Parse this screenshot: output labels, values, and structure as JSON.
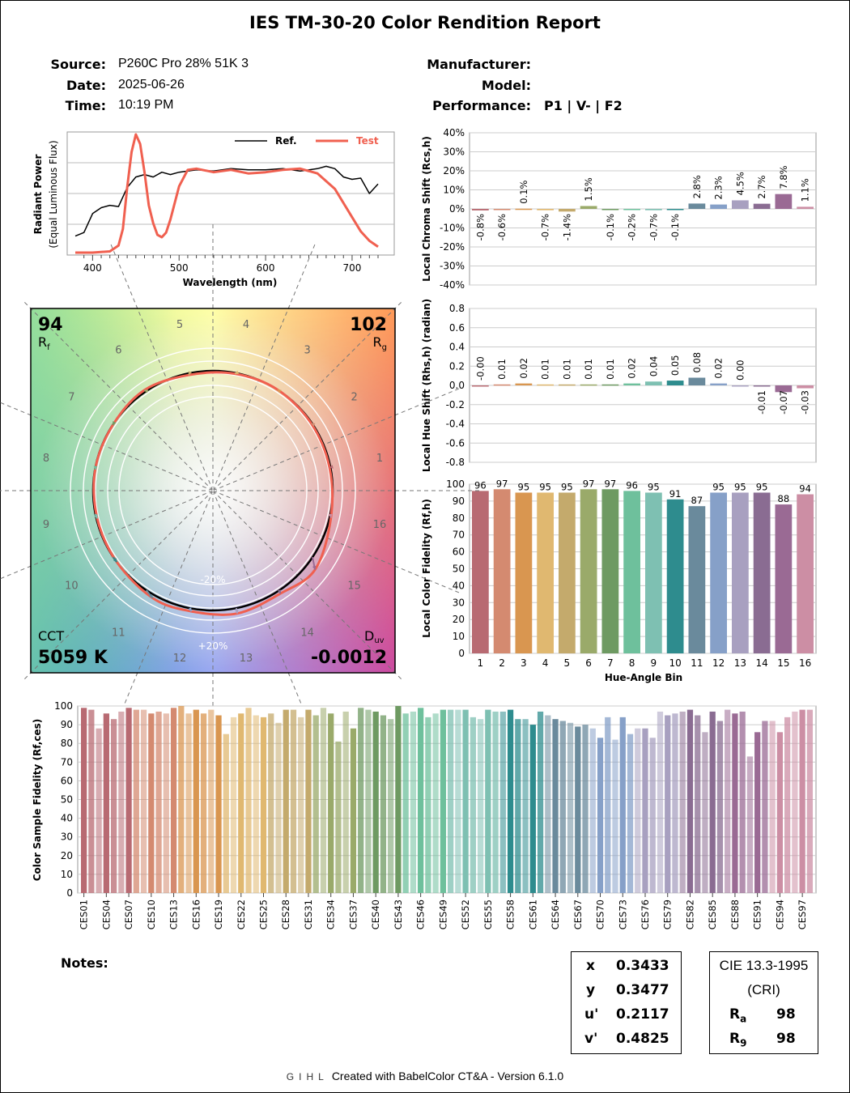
{
  "header": {
    "title": "IES TM-30-20 Color Rendition Report",
    "source_label": "Source:",
    "source": "P260C Pro 28% 51K 3",
    "date_label": "Date:",
    "date": "2025-06-26",
    "time_label": "Time:",
    "time": "10:19 PM",
    "manufacturer_label": "Manufacturer:",
    "manufacturer": "",
    "model_label": "Model:",
    "model": "",
    "performance_label": "Performance:",
    "performance": "P1 | V- | F2"
  },
  "gamut": {
    "rf": "94",
    "rf_label": "R",
    "rf_sub": "f",
    "rg": "102",
    "rg_label": "R",
    "rg_sub": "g",
    "cct_label": "CCT",
    "cct": "5059 K",
    "duv_label": "D",
    "duv_sub": "uv",
    "duv": "-0.0012",
    "minus_label": "-20%",
    "plus_label": "+20%",
    "bin_labels": [
      "1",
      "2",
      "3",
      "4",
      "5",
      "6",
      "7",
      "8",
      "9",
      "10",
      "11",
      "12",
      "13",
      "14",
      "15",
      "16"
    ],
    "colors": {
      "reference": "#000000",
      "test": "#f06050"
    }
  },
  "summary": {
    "x_label": "x",
    "x": "0.3433",
    "y_label": "y",
    "y": "0.3477",
    "u_label": "u'",
    "u": "0.2117",
    "v_label": "v'",
    "v": "0.4825",
    "cri_title": "CIE 13.3-1995",
    "cri_sub": "(CRI)",
    "ra_label": "R",
    "ra_sub": "a",
    "ra": "98",
    "r9_label": "R",
    "r9_sub": "9",
    "r9": "98"
  },
  "notes_label": "Notes:",
  "footer": {
    "logo": "GIHL",
    "text": "Created with BabelColor CT&A - Version 6.1.0"
  },
  "chart_data": [
    {
      "type": "line",
      "xlabel": "Wavelength (nm)",
      "ylabel": "Radiant Power",
      "ylabel2": "(Equal Luminous Flux)",
      "xlim": [
        380,
        730
      ],
      "x_ticks": [
        "400",
        "500",
        "600",
        "700"
      ],
      "legend": "top-right",
      "series": [
        {
          "name": "Ref.",
          "color": "#000000",
          "x": [
            380,
            390,
            400,
            410,
            420,
            430,
            440,
            450,
            460,
            470,
            480,
            490,
            500,
            520,
            540,
            560,
            580,
            600,
            620,
            640,
            660,
            670,
            680,
            690,
            700,
            710,
            720,
            730
          ],
          "y": [
            0.14,
            0.17,
            0.33,
            0.38,
            0.4,
            0.39,
            0.55,
            0.64,
            0.66,
            0.64,
            0.68,
            0.66,
            0.68,
            0.7,
            0.69,
            0.71,
            0.7,
            0.7,
            0.71,
            0.69,
            0.71,
            0.73,
            0.71,
            0.64,
            0.62,
            0.63,
            0.5,
            0.58
          ]
        },
        {
          "name": "Test",
          "color": "#f06050",
          "x": [
            380,
            400,
            420,
            430,
            435,
            440,
            445,
            450,
            455,
            460,
            465,
            470,
            475,
            480,
            485,
            490,
            500,
            510,
            520,
            540,
            560,
            580,
            600,
            620,
            640,
            660,
            680,
            700,
            710,
            720,
            730
          ],
          "y": [
            0.0,
            0.0,
            0.01,
            0.06,
            0.2,
            0.55,
            0.85,
            1.0,
            0.92,
            0.68,
            0.4,
            0.25,
            0.15,
            0.13,
            0.17,
            0.28,
            0.56,
            0.7,
            0.71,
            0.68,
            0.7,
            0.67,
            0.68,
            0.7,
            0.71,
            0.67,
            0.54,
            0.3,
            0.18,
            0.1,
            0.05
          ]
        }
      ]
    },
    {
      "type": "bar",
      "ylabel": "Local Chroma Shift (Rcs,h)",
      "ylim": [
        -40,
        40
      ],
      "y_ticks": [
        "40%",
        "30%",
        "20%",
        "10%",
        "0%",
        "-10%",
        "-20%",
        "-30%",
        "-40%"
      ],
      "categories": [
        "1",
        "2",
        "3",
        "4",
        "5",
        "6",
        "7",
        "8",
        "9",
        "10",
        "11",
        "12",
        "13",
        "14",
        "15",
        "16"
      ],
      "values": [
        -0.8,
        -0.6,
        0.1,
        -0.7,
        -1.4,
        1.5,
        -0.1,
        -0.2,
        -0.7,
        -0.1,
        2.8,
        2.3,
        4.5,
        2.7,
        7.8,
        1.1
      ],
      "labels": [
        "-0.8%",
        "-0.6%",
        "0.1%",
        "-0.7%",
        "-1.4%",
        "1.5%",
        "-0.1%",
        "-0.2%",
        "-0.7%",
        "-0.1%",
        "2.8%",
        "2.3%",
        "4.5%",
        "2.7%",
        "7.8%",
        "1.1%"
      ]
    },
    {
      "type": "bar",
      "ylabel": "Local Hue Shift (Rhs,h) (radian)",
      "ylim": [
        -0.8,
        0.8
      ],
      "y_ticks": [
        "0.8",
        "0.6",
        "0.4",
        "0.2",
        "0.0",
        "-0.2",
        "-0.4",
        "-0.6",
        "-0.8"
      ],
      "categories": [
        "1",
        "2",
        "3",
        "4",
        "5",
        "6",
        "7",
        "8",
        "9",
        "10",
        "11",
        "12",
        "13",
        "14",
        "15",
        "16"
      ],
      "values": [
        -0.0,
        0.01,
        0.02,
        0.01,
        0.01,
        0.01,
        0.01,
        0.02,
        0.04,
        0.05,
        0.08,
        0.02,
        0.0,
        -0.01,
        -0.07,
        -0.03
      ],
      "labels": [
        "-0.00",
        "0.01",
        "0.02",
        "0.01",
        "0.01",
        "0.01",
        "0.01",
        "0.02",
        "0.04",
        "0.05",
        "0.08",
        "0.02",
        "0.00",
        "-0.01",
        "-0.07",
        "-0.03"
      ]
    },
    {
      "type": "bar",
      "ylabel": "Local Color Fidelity (Rf,h)",
      "xlabel": "Hue-Angle Bin",
      "ylim": [
        0,
        100
      ],
      "y_ticks": [
        "100",
        "90",
        "80",
        "70",
        "60",
        "50",
        "40",
        "30",
        "20",
        "10",
        "0"
      ],
      "categories": [
        "1",
        "2",
        "3",
        "4",
        "5",
        "6",
        "7",
        "8",
        "9",
        "10",
        "11",
        "12",
        "13",
        "14",
        "15",
        "16"
      ],
      "values": [
        96,
        97,
        95,
        95,
        95,
        97,
        97,
        96,
        95,
        91,
        87,
        95,
        95,
        95,
        88,
        94
      ]
    },
    {
      "type": "bar",
      "ylabel": "Color Sample Fidelity (Rf,ces)",
      "ylim": [
        0,
        100
      ],
      "y_ticks": [
        "100",
        "90",
        "80",
        "70",
        "60",
        "50",
        "40",
        "30",
        "20",
        "10",
        "0"
      ],
      "tick_labels": [
        "CES01",
        "CES04",
        "CES07",
        "CES10",
        "CES13",
        "CES16",
        "CES19",
        "CES22",
        "CES25",
        "CES28",
        "CES31",
        "CES34",
        "CES37",
        "CES40",
        "CES43",
        "CES46",
        "CES49",
        "CES52",
        "CES55",
        "CES58",
        "CES61",
        "CES64",
        "CES67",
        "CES70",
        "CES73",
        "CES76",
        "CES79",
        "CES82",
        "CES85",
        "CES88",
        "CES91",
        "CES94",
        "CES97"
      ],
      "values": [
        99,
        98,
        88,
        96,
        93,
        97,
        99,
        98,
        98,
        96,
        97,
        96,
        99,
        100,
        96,
        98,
        96,
        98,
        95,
        85,
        94,
        96,
        99,
        95,
        94,
        96,
        91,
        98,
        98,
        94,
        98,
        95,
        99,
        96,
        81,
        97,
        88,
        99,
        98,
        97,
        95,
        93,
        100,
        96,
        97,
        99,
        94,
        96,
        98,
        98,
        98,
        98,
        94,
        93,
        98,
        97,
        97,
        98,
        93,
        93,
        90,
        97,
        95,
        93,
        92,
        91,
        89,
        90,
        88,
        83,
        94,
        82,
        94,
        85,
        88,
        88,
        83,
        97,
        95,
        96,
        97,
        98,
        95,
        86,
        97,
        92,
        98,
        96,
        97,
        73,
        86,
        92,
        92,
        86,
        94,
        97,
        98,
        98
      ]
    }
  ]
}
